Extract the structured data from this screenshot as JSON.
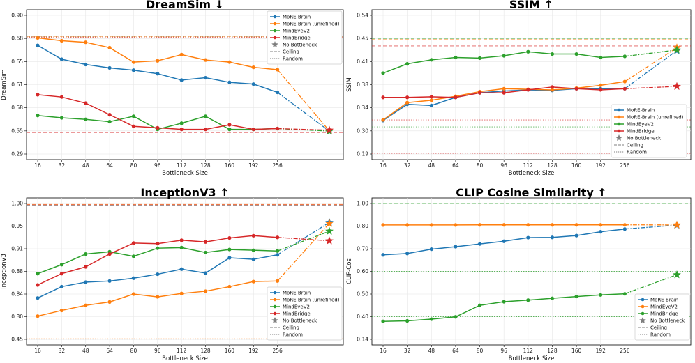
{
  "colors": {
    "blue": "#1f77b4",
    "orange": "#ff7f0e",
    "green": "#2ca02c",
    "red": "#d62728",
    "gray": "#7f7f7f"
  },
  "legend_common": {
    "no_bottleneck": "No Bottleneck",
    "ceiling": "Ceiling",
    "random": "Random"
  },
  "chart_data": [
    {
      "type": "line",
      "title": "DreamSim",
      "direction": "↓",
      "xlabel": "Bottleneck Size",
      "ylabel": "DreamSim",
      "categories": [
        "16",
        "32",
        "48",
        "64",
        "80",
        "96",
        "112",
        "128",
        "160",
        "192",
        "256"
      ],
      "ytick_labels": [
        "0.90",
        "0.68",
        "0.65",
        "0.61",
        "0.58",
        "0.55",
        "0.29"
      ],
      "ylim": [
        0.29,
        0.9
      ],
      "legend_position": "top-right",
      "series": [
        {
          "name": "MoRE-Brain",
          "color_key": "blue",
          "values": [
            0.671,
            0.653,
            0.645,
            0.639,
            0.635,
            0.629,
            0.618,
            0.622,
            0.614,
            0.611,
            0.6
          ],
          "no_bottleneck": 0.548
        },
        {
          "name": "MoRE-Brain (unrefined)",
          "color_key": "orange",
          "values": [
            0.685,
            0.677,
            0.675,
            0.668,
            0.649,
            0.651,
            0.659,
            0.652,
            0.649,
            0.64,
            0.636
          ],
          "no_bottleneck": 0.55
        },
        {
          "name": "MindEyeV2",
          "color_key": "green",
          "values": [
            0.57,
            0.567,
            0.565,
            0.562,
            0.569,
            0.552,
            0.56,
            0.569,
            0.552,
            0.552,
            0.553
          ],
          "no_bottleneck": 0.548
        },
        {
          "name": "MindBridge",
          "color_key": "red",
          "values": [
            0.597,
            0.594,
            0.586,
            0.571,
            0.556,
            0.554,
            0.552,
            0.552,
            0.558,
            0.552,
            0.553
          ],
          "no_bottleneck": 0.551
        }
      ],
      "ceilings": [
        {
          "color_key": "orange",
          "value": 0.7
        },
        {
          "color_key": "green",
          "value": 0.537
        },
        {
          "color_key": "red",
          "value": 0.532
        }
      ],
      "randoms": [
        {
          "color_key": "orange",
          "value": 0.695
        },
        {
          "color_key": "red",
          "value": 0.69
        },
        {
          "color_key": "gray",
          "value": 0.7
        }
      ]
    },
    {
      "type": "line",
      "title": "SSIM",
      "direction": "↑",
      "xlabel": "Bottleneck Size",
      "ylabel": "SSIM",
      "categories": [
        "16",
        "32",
        "48",
        "64",
        "80",
        "96",
        "112",
        "128",
        "160",
        "192",
        "256"
      ],
      "ytick_labels": [
        "0.54",
        "0.45",
        "0.41",
        "0.38",
        "0.34",
        "0.30",
        "0.19"
      ],
      "ylim": [
        0.19,
        0.54
      ],
      "legend_position": "lower-right",
      "series": [
        {
          "name": "MoRE-Brain",
          "color_key": "blue",
          "values": [
            0.318,
            0.346,
            0.344,
            0.358,
            0.366,
            0.369,
            0.371,
            0.37,
            0.373,
            0.373,
            0.373
          ],
          "no_bottleneck": 0.429
        },
        {
          "name": "MoRE-Brain (unrefined)",
          "color_key": "orange",
          "values": [
            0.319,
            0.349,
            0.353,
            0.36,
            0.368,
            0.373,
            0.372,
            0.371,
            0.374,
            0.379,
            0.384
          ],
          "no_bottleneck": 0.434
        },
        {
          "name": "MindEyeV2",
          "color_key": "green",
          "values": [
            0.395,
            0.407,
            0.413,
            0.417,
            0.416,
            0.42,
            0.427,
            0.423,
            0.423,
            0.417,
            0.419
          ],
          "no_bottleneck": 0.43
        },
        {
          "name": "MindBridge",
          "color_key": "red",
          "values": [
            0.358,
            0.358,
            0.359,
            0.358,
            0.366,
            0.366,
            0.371,
            0.376,
            0.373,
            0.371,
            0.373
          ],
          "no_bottleneck": 0.377
        }
      ],
      "ceilings": [
        {
          "color_key": "green",
          "value": 0.45
        },
        {
          "color_key": "orange",
          "value": 0.448
        },
        {
          "color_key": "red",
          "value": 0.437
        }
      ],
      "randoms": [
        {
          "color_key": "red",
          "value": 0.319
        },
        {
          "color_key": "green",
          "value": 0.307
        },
        {
          "color_key": "red",
          "value": 0.193
        }
      ]
    },
    {
      "type": "line",
      "title": "InceptionV3",
      "direction": "↑",
      "xlabel": "Bottleneck Size",
      "ylabel": "InceptionV3",
      "categories": [
        "16",
        "32",
        "48",
        "64",
        "80",
        "96",
        "112",
        "128",
        "160",
        "192",
        "256"
      ],
      "ytick_labels": [
        "1.00",
        "0.95",
        "0.91",
        "0.88",
        "0.84",
        "0.80",
        "0.45"
      ],
      "ylim": [
        0.45,
        1.0
      ],
      "legend_position": "lower-right",
      "series": [
        {
          "name": "MoRE-Brain",
          "color_key": "blue",
          "values": [
            0.833,
            0.853,
            0.861,
            0.863,
            0.868,
            0.875,
            0.883,
            0.877,
            0.898,
            0.896,
            0.902
          ],
          "no_bottleneck": 0.958
        },
        {
          "name": "MoRE-Brain (unrefined)",
          "color_key": "orange",
          "values": [
            0.801,
            0.811,
            0.82,
            0.826,
            0.84,
            0.835,
            0.841,
            0.845,
            0.853,
            0.862,
            0.863
          ],
          "no_bottleneck": 0.956
        },
        {
          "name": "MindEyeV2",
          "color_key": "green",
          "values": [
            0.876,
            0.889,
            0.903,
            0.906,
            0.9,
            0.911,
            0.912,
            0.905,
            0.909,
            0.908,
            0.907
          ],
          "no_bottleneck": 0.941
        },
        {
          "name": "MindBridge",
          "color_key": "red",
          "values": [
            0.856,
            0.876,
            0.886,
            0.903,
            0.92,
            0.919,
            0.925,
            0.922,
            0.929,
            0.933,
            0.93
          ],
          "no_bottleneck": 0.924
        }
      ],
      "ceilings": [
        {
          "color_key": "orange",
          "value": 0.998
        },
        {
          "color_key": "red",
          "value": 0.997
        },
        {
          "color_key": "gray",
          "value": 0.996
        }
      ],
      "randoms": [
        {
          "color_key": "orange",
          "value": 0.459
        },
        {
          "color_key": "red",
          "value": 0.456
        },
        {
          "color_key": "gray",
          "value": 0.453
        }
      ]
    },
    {
      "type": "line",
      "title": "CLIP Cosine Similarity",
      "direction": "↑",
      "xlabel": "Bottleneck Size",
      "ylabel": "CLIP-Cos",
      "categories": [
        "16",
        "32",
        "48",
        "64",
        "80",
        "96",
        "112",
        "128",
        "160",
        "192",
        "256"
      ],
      "ytick_labels": [
        "1.00",
        "0.80",
        "0.70",
        "0.60",
        "0.50",
        "0.40",
        "0.14"
      ],
      "ylim": [
        0.14,
        1.0
      ],
      "legend_position": "lower-right",
      "series": [
        {
          "name": "MoRE-Brain",
          "color_key": "blue",
          "values": [
            0.673,
            0.679,
            0.698,
            0.709,
            0.721,
            0.733,
            0.749,
            0.75,
            0.758,
            0.775,
            0.787
          ],
          "no_bottleneck": 0.808
        },
        {
          "name": "MindEyeV2",
          "color_key": "orange",
          "values": [
            0.81,
            0.81,
            0.81,
            0.81,
            0.811,
            0.811,
            0.811,
            0.811,
            0.811,
            0.811,
            0.811
          ],
          "no_bottleneck": 0.81
        },
        {
          "name": "MindBridge",
          "color_key": "green",
          "values": [
            0.346,
            0.352,
            0.372,
            0.398,
            0.45,
            0.466,
            0.473,
            0.481,
            0.489,
            0.496,
            0.501
          ],
          "no_bottleneck": 0.585
        }
      ],
      "ceilings": [
        {
          "color_key": "green",
          "value": 1.0
        }
      ],
      "randoms": [
        {
          "color_key": "orange",
          "value": 0.8
        },
        {
          "color_key": "green",
          "value": 0.6
        },
        {
          "color_key": "green",
          "value": 0.4
        }
      ]
    }
  ]
}
